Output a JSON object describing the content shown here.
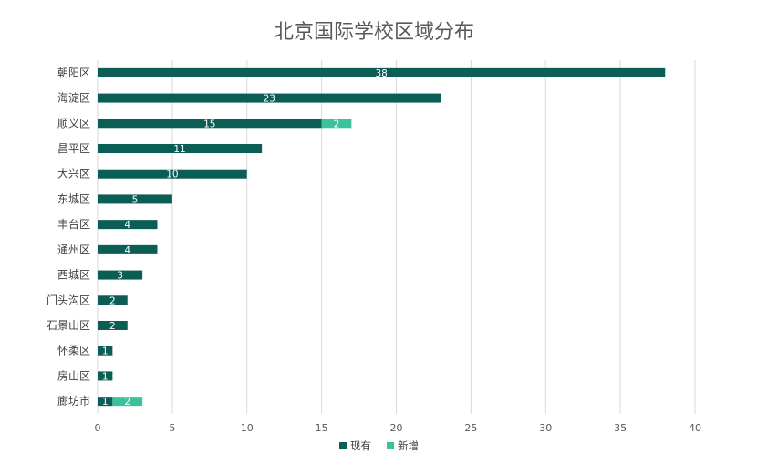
{
  "chart_data": {
    "type": "bar",
    "orientation": "horizontal",
    "stacked": true,
    "title": "北京国际学校区域分布",
    "categories": [
      "朝阳区",
      "海淀区",
      "顺义区",
      "昌平区",
      "大兴区",
      "东城区",
      "丰台区",
      "通州区",
      "西城区",
      "门头沟区",
      "石景山区",
      "怀柔区",
      "房山区",
      "廊坊市"
    ],
    "series": [
      {
        "name": "现有",
        "color": "#0b5e55",
        "values": [
          38,
          23,
          15,
          11,
          10,
          5,
          4,
          4,
          3,
          2,
          2,
          1,
          1,
          1
        ]
      },
      {
        "name": "新增",
        "color": "#3cc29a",
        "values": [
          0,
          0,
          2,
          0,
          0,
          0,
          0,
          0,
          0,
          0,
          0,
          0,
          0,
          2
        ]
      }
    ],
    "xlim": [
      0,
      40
    ],
    "xticks": [
      0,
      5,
      10,
      15,
      20,
      25,
      30,
      35,
      40
    ],
    "grid": true,
    "legend_position": "bottom"
  }
}
